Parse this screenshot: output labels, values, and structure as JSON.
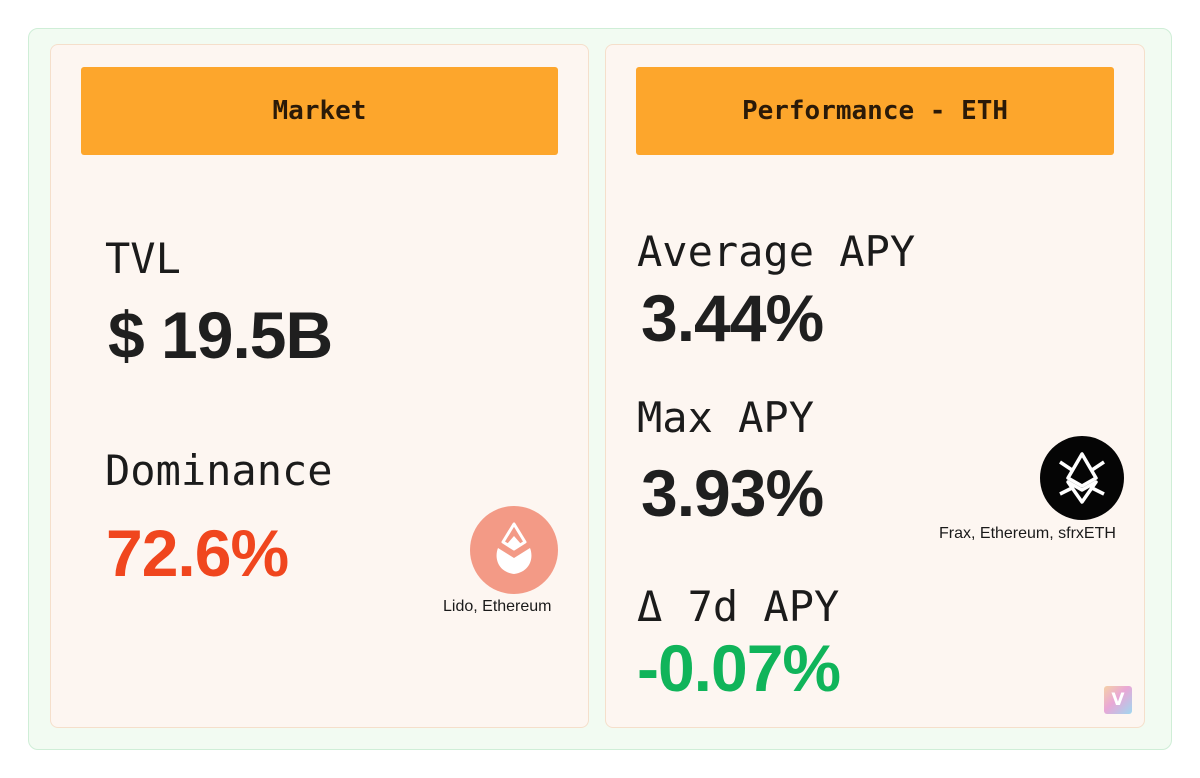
{
  "market": {
    "header": "Market",
    "tvl_label": "TVL",
    "tvl_value": "$ 19.5B",
    "dominance_label": "Dominance",
    "dominance_value": "72.6%",
    "dominance_protocol": "Lido, Ethereum",
    "dominance_logo_icon": "lido-drop-icon"
  },
  "performance": {
    "header": "Performance - ETH",
    "average_apy_label": "Average APY",
    "average_apy_value": "3.44%",
    "max_apy_label": "Max APY",
    "max_apy_value": "3.93%",
    "max_apy_protocol": "Frax, Ethereum, sfrxETH",
    "max_apy_logo_icon": "frax-eth-icon",
    "delta_label": "Δ 7d APY",
    "delta_value": "-0.07%"
  },
  "watermark": {
    "letter": "V",
    "icon": "brand-v-icon"
  },
  "colors": {
    "header_bg": "#fda62c",
    "card_bg": "#fdf6f1",
    "outer_bg": "#f2fbf2",
    "negative_dominance": "#f0461e",
    "positive_value": "#10b45a",
    "lido_logo_bg": "#f39a86",
    "frax_logo_bg": "#050505"
  }
}
